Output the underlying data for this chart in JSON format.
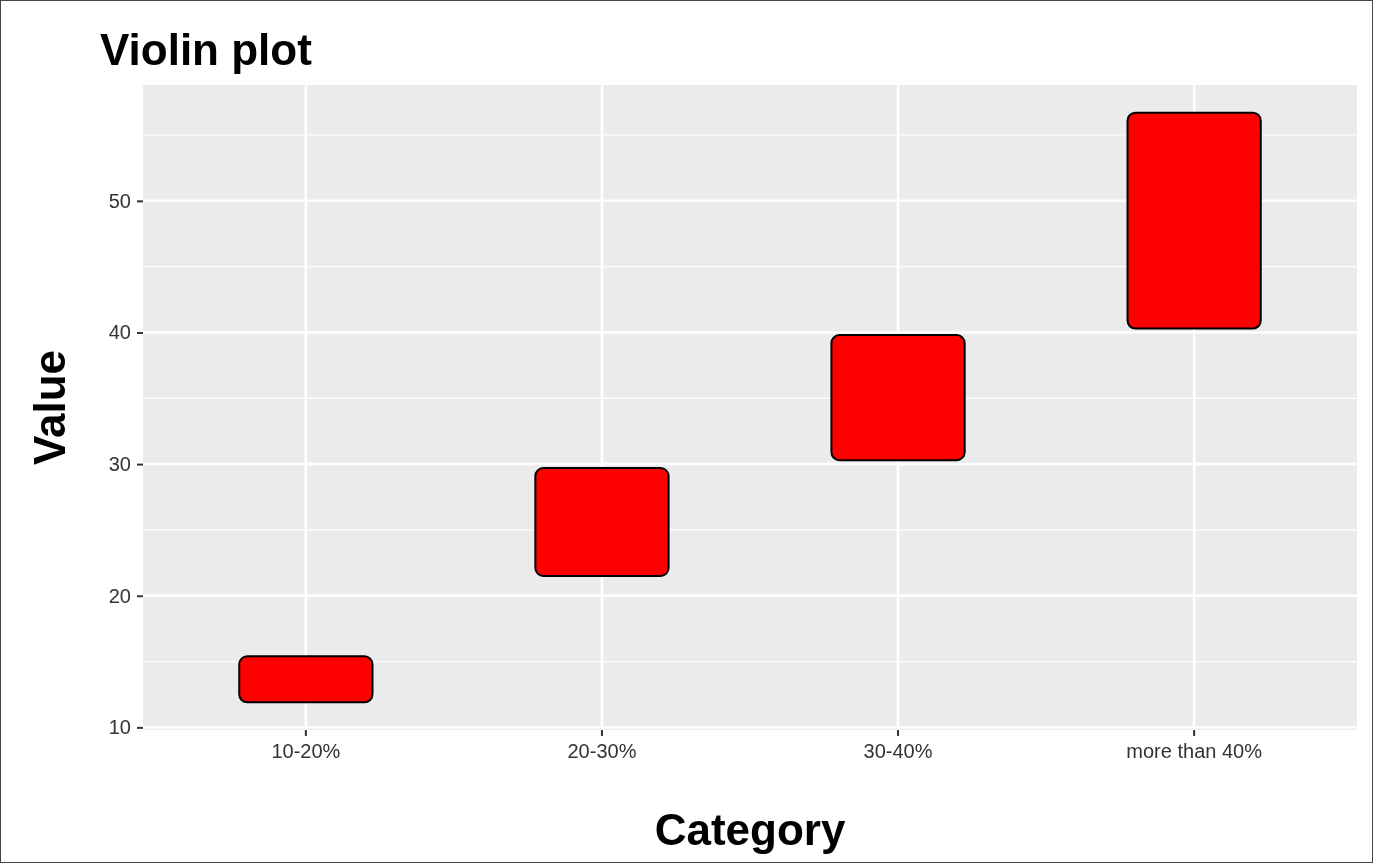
{
  "chart_data": {
    "type": "bar",
    "title": "Violin plot",
    "xlabel": "Category",
    "ylabel": "Value",
    "categories": [
      "10-20%",
      "20-30%",
      "30-40%",
      "more than 40%"
    ],
    "base": [
      11.9,
      21.5,
      30.3,
      40.3
    ],
    "values": [
      3.5,
      8.2,
      9.5,
      16.4
    ],
    "color": "#ff0000",
    "ylim": [
      9.8,
      58.8
    ],
    "yticks": [
      10,
      20,
      30,
      40,
      50
    ],
    "grid": true
  }
}
